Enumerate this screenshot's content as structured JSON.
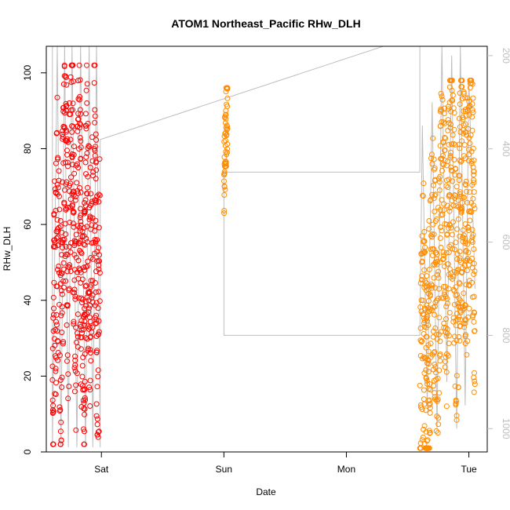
{
  "chart_data": {
    "type": "scatter",
    "title": "ATOM1 Northeast_Pacific RHw_DLH",
    "xlabel": "Date",
    "ylabel": "RHw_DLH",
    "x_ticks": [
      "Sat",
      "Sun",
      "Mon",
      "Tue"
    ],
    "ylim": [
      0,
      107
    ],
    "y_ticks": [
      0,
      20,
      40,
      60,
      80,
      100
    ],
    "y2_ticks": [
      200,
      400,
      600,
      800,
      1000
    ],
    "y2_range": [
      1050,
      180
    ],
    "xlim_days": [
      -0.45,
      3.15
    ],
    "grid": false,
    "colors": {
      "series_red": "#ff0000",
      "series_orange": "#ff8c00",
      "pressure_line": "#bebebe"
    },
    "series": [
      {
        "color": "red",
        "x_days_range": [
          -0.4,
          -0.01
        ],
        "y_range": [
          2,
          102
        ],
        "profile": [
          [
            -0.4,
            20
          ],
          [
            -0.36,
            60
          ],
          [
            -0.33,
            30
          ],
          [
            -0.3,
            85
          ],
          [
            -0.27,
            45
          ],
          [
            -0.24,
            90
          ],
          [
            -0.21,
            35
          ],
          [
            -0.18,
            80
          ],
          [
            -0.15,
            15
          ],
          [
            -0.12,
            70
          ],
          [
            -0.09,
            40
          ],
          [
            -0.06,
            85
          ],
          [
            -0.03,
            25
          ],
          [
            -0.01,
            50
          ]
        ]
      },
      {
        "color": "orange",
        "x_days_range": [
          1.0,
          1.03
        ],
        "y_range": [
          63,
          96
        ],
        "profile": [
          [
            1.0,
            70
          ],
          [
            1.015,
            85
          ],
          [
            1.03,
            92
          ]
        ]
      },
      {
        "color": "orange",
        "x_days_range": [
          2.6,
          3.05
        ],
        "y_range": [
          1,
          98
        ],
        "profile": [
          [
            2.6,
            20
          ],
          [
            2.63,
            40
          ],
          [
            2.66,
            10
          ],
          [
            2.7,
            55
          ],
          [
            2.74,
            30
          ],
          [
            2.78,
            70
          ],
          [
            2.82,
            45
          ],
          [
            2.86,
            85
          ],
          [
            2.9,
            35
          ],
          [
            2.94,
            75
          ],
          [
            2.98,
            55
          ],
          [
            3.02,
            80
          ],
          [
            3.05,
            40
          ]
        ]
      }
    ],
    "pressure_path": [
      [
        -0.45,
        180
      ],
      [
        -0.4,
        180
      ],
      [
        -0.4,
        1040
      ],
      [
        -0.36,
        180
      ],
      [
        -0.33,
        1040
      ],
      [
        -0.3,
        180
      ],
      [
        -0.27,
        1040
      ],
      [
        -0.24,
        180
      ],
      [
        -0.2,
        1040
      ],
      [
        -0.17,
        180
      ],
      [
        -0.13,
        1040
      ],
      [
        -0.1,
        180
      ],
      [
        -0.07,
        1040
      ],
      [
        -0.04,
        180
      ],
      [
        -0.01,
        1040
      ],
      [
        -0.01,
        380
      ],
      [
        2.3,
        180
      ],
      [
        2.6,
        180
      ],
      [
        2.6,
        450
      ],
      [
        1.0,
        450
      ],
      [
        1.0,
        800
      ],
      [
        2.6,
        800
      ],
      [
        2.62,
        350
      ],
      [
        2.66,
        950
      ],
      [
        2.7,
        300
      ],
      [
        2.74,
        1000
      ],
      [
        2.78,
        180
      ],
      [
        2.82,
        900
      ],
      [
        2.86,
        200
      ],
      [
        2.9,
        1000
      ],
      [
        2.93,
        180
      ],
      [
        2.97,
        950
      ],
      [
        3.0,
        250
      ],
      [
        3.05,
        700
      ]
    ]
  }
}
